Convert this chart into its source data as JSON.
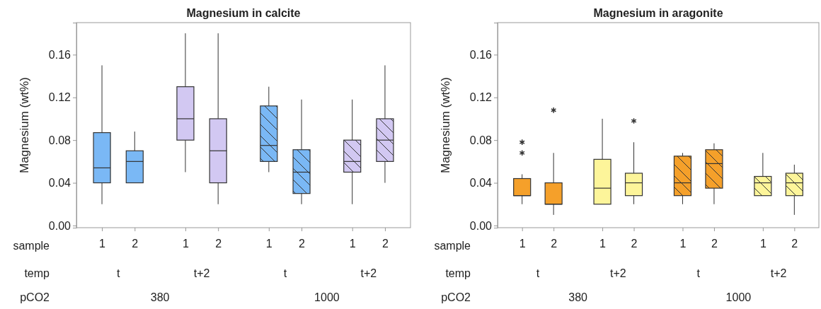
{
  "chart_data": [
    {
      "type": "box",
      "title": "Magnesium in calcite",
      "ylabel": "Magnesium (wt%)",
      "categories": [
        "1",
        "2",
        "1",
        "2",
        "1",
        "2",
        "1",
        "2"
      ],
      "colors": [
        "#7ab8f5",
        "#7ab8f5",
        "#d2c8f2",
        "#d2c8f2",
        "#7ab8f5",
        "#7ab8f5",
        "#d2c8f2",
        "#d2c8f2"
      ],
      "boxes": [
        {
          "low": 0.02,
          "q1": 0.04,
          "median": 0.054,
          "q3": 0.087,
          "high": 0.15
        },
        {
          "low": 0.04,
          "q1": 0.04,
          "median": 0.06,
          "q3": 0.07,
          "high": 0.088
        },
        {
          "low": 0.05,
          "q1": 0.08,
          "median": 0.1,
          "q3": 0.13,
          "high": 0.18
        },
        {
          "low": 0.02,
          "q1": 0.04,
          "median": 0.07,
          "q3": 0.1,
          "high": 0.18
        },
        {
          "low": 0.05,
          "q1": 0.06,
          "median": 0.075,
          "q3": 0.112,
          "high": 0.13
        },
        {
          "low": 0.02,
          "q1": 0.03,
          "median": 0.05,
          "q3": 0.071,
          "high": 0.118
        },
        {
          "low": 0.02,
          "q1": 0.05,
          "median": 0.06,
          "q3": 0.08,
          "high": 0.118
        },
        {
          "low": 0.04,
          "q1": 0.06,
          "median": 0.08,
          "q3": 0.1,
          "high": 0.15
        }
      ],
      "ylim": [
        -0.002,
        0.19
      ],
      "yticks": [
        {
          "value": 0,
          "label": "0.00"
        },
        0.04,
        0.08,
        0.12,
        0.16
      ],
      "grid": false,
      "annotations": [
        "sample",
        "temp",
        "pCO2",
        "t",
        "t+2",
        "t",
        "t+2",
        "380",
        "1000"
      ]
    },
    {
      "type": "box",
      "title": "Magnesium in aragonite",
      "ylabel": "Magnesium (wt%)",
      "categories": [
        "1",
        "2",
        "1",
        "2",
        "1",
        "2",
        "1",
        "2"
      ],
      "colors": [
        "#f5a02a",
        "#f5a02a",
        "#fdf59a",
        "#fdf59a",
        "#f5a02a",
        "#f5a02a",
        "#fdf59a",
        "#fdf59a"
      ],
      "boxes": [
        {
          "low": 0.02,
          "q1": 0.028,
          "median": 0.028,
          "q3": 0.044,
          "high": 0.048,
          "outliers": [
            0.068,
            0.078
          ]
        },
        {
          "low": 0.01,
          "q1": 0.02,
          "median": 0.02,
          "q3": 0.04,
          "high": 0.068,
          "outliers": [
            0.108
          ]
        },
        {
          "low": 0.02,
          "q1": 0.02,
          "median": 0.035,
          "q3": 0.062,
          "high": 0.1
        },
        {
          "low": 0.02,
          "q1": 0.028,
          "median": 0.04,
          "q3": 0.049,
          "high": 0.078,
          "outliers": [
            0.098
          ]
        },
        {
          "low": 0.02,
          "q1": 0.028,
          "median": 0.04,
          "q3": 0.065,
          "high": 0.068
        },
        {
          "low": 0.02,
          "q1": 0.035,
          "median": 0.058,
          "q3": 0.071,
          "high": 0.077
        },
        {
          "low": 0.028,
          "q1": 0.028,
          "median": 0.04,
          "q3": 0.046,
          "high": 0.068
        },
        {
          "low": 0.01,
          "q1": 0.028,
          "median": 0.04,
          "q3": 0.049,
          "high": 0.057
        }
      ],
      "ylim": [
        -0.002,
        0.19
      ],
      "yticks": [
        {
          "value": 0,
          "label": "0.00"
        },
        0.04,
        0.08,
        0.12,
        0.16
      ],
      "grid": false,
      "annotations": [
        "sample",
        "temp",
        "pCO2",
        "t",
        "t+2",
        "t",
        "t+2",
        "380",
        "1000"
      ]
    }
  ]
}
